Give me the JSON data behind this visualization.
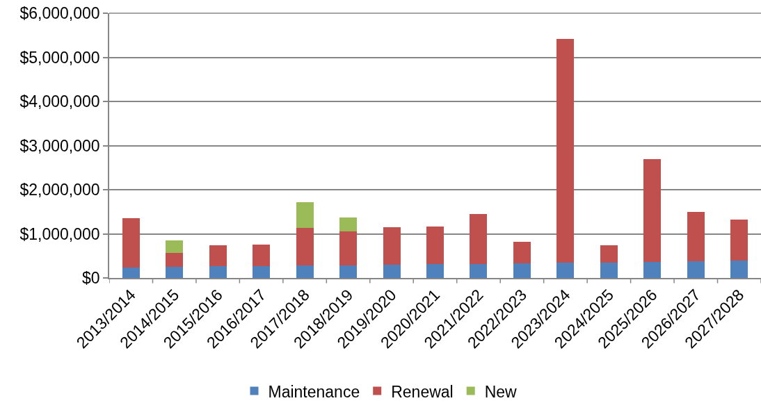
{
  "chart_data": {
    "type": "bar",
    "stacked": true,
    "categories": [
      "2013/2014",
      "2014/2015",
      "2015/2016",
      "2016/2017",
      "2017/2018",
      "2018/2019",
      "2019/2020",
      "2020/2021",
      "2021/2022",
      "2022/2023",
      "2023/2024",
      "2024/2025",
      "2025/2026",
      "2026/2027",
      "2027/2028"
    ],
    "series": [
      {
        "name": "Maintenance",
        "color": "#4f81bd",
        "values": [
          240000,
          250000,
          260000,
          270000,
          280000,
          290000,
          300000,
          310000,
          320000,
          330000,
          340000,
          350000,
          370000,
          380000,
          390000
        ]
      },
      {
        "name": "Renewal",
        "color": "#c0504d",
        "values": [
          1120000,
          310000,
          480000,
          480000,
          860000,
          770000,
          850000,
          860000,
          1130000,
          490000,
          5080000,
          390000,
          2320000,
          1110000,
          940000
        ]
      },
      {
        "name": "New",
        "color": "#9bbb59",
        "values": [
          null,
          290000,
          null,
          null,
          570000,
          310000,
          null,
          null,
          null,
          null,
          null,
          null,
          null,
          null,
          null
        ]
      }
    ],
    "ylim": [
      0,
      6000000
    ],
    "yticks": [
      {
        "value": 0,
        "label": "$0"
      },
      {
        "value": 1000000,
        "label": "$1,000,000"
      },
      {
        "value": 2000000,
        "label": "$2,000,000"
      },
      {
        "value": 3000000,
        "label": "$3,000,000"
      },
      {
        "value": 4000000,
        "label": "$4,000,000"
      },
      {
        "value": 5000000,
        "label": "$5,000,000"
      },
      {
        "value": 6000000,
        "label": "$6,000,000"
      }
    ],
    "grid": "y",
    "legend": "bottom"
  }
}
